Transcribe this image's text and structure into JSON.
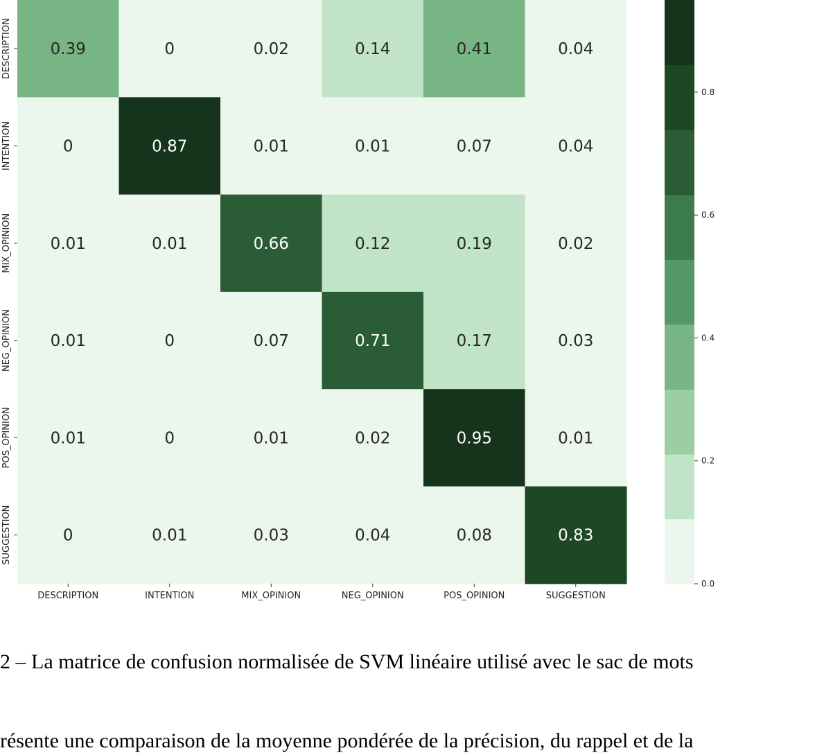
{
  "chart_data": {
    "type": "heatmap",
    "title": "",
    "xlabel": "",
    "ylabel": "",
    "x_categories": [
      "DESCRIPTION",
      "INTENTION",
      "MIX_OPINION",
      "NEG_OPINION",
      "POS_OPINION",
      "SUGGESTION"
    ],
    "y_categories": [
      "DESCRIPTION",
      "INTENTION",
      "MIX_OPINION",
      "NEG_OPINION",
      "POS_OPINION",
      "SUGGESTION"
    ],
    "values": [
      [
        0.39,
        0,
        0.02,
        0.14,
        0.41,
        0.04
      ],
      [
        0,
        0.87,
        0.01,
        0.01,
        0.07,
        0.04
      ],
      [
        0.01,
        0.01,
        0.66,
        0.12,
        0.19,
        0.02
      ],
      [
        0.01,
        0,
        0.07,
        0.71,
        0.17,
        0.03
      ],
      [
        0.01,
        0,
        0.01,
        0.02,
        0.95,
        0.01
      ],
      [
        0,
        0.01,
        0.03,
        0.04,
        0.08,
        0.83
      ]
    ],
    "colorbar": {
      "range": [
        0.0,
        0.95
      ],
      "ticks": [
        0.0,
        0.2,
        0.4,
        0.6,
        0.8
      ],
      "tick_labels": [
        "0.0",
        "0.2",
        "0.4",
        "0.6",
        "0.8"
      ],
      "bins": 9,
      "colors": [
        "#ebf6ec",
        "#c1e3c7",
        "#9bcea3",
        "#78b584",
        "#56976a",
        "#3c7b4c",
        "#2a5d36",
        "#1e4725",
        "#16331b"
      ]
    }
  },
  "caption": {
    "line1": "2 – La matrice de confusion normalisée de SVM linéaire utilisé avec le sac de mots",
    "line2": "résente une comparaison de la moyenne pondérée de la précision, du rappel et de la"
  }
}
